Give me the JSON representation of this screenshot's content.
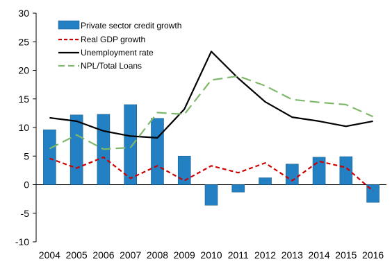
{
  "chart_data": {
    "type": "bar+line",
    "categories": [
      "2004",
      "2005",
      "2006",
      "2007",
      "2008",
      "2009",
      "2010",
      "2011",
      "2012",
      "2013",
      "2014",
      "2015",
      "2016"
    ],
    "ylim": [
      -10,
      30
    ],
    "yticks": [
      30,
      25,
      20,
      15,
      10,
      5,
      0,
      -5,
      -10
    ],
    "ytick_labels": [
      "30",
      "25",
      "20",
      "15",
      "10",
      "5",
      "0",
      "-5",
      "-10"
    ],
    "grid": false,
    "legend_position": "top-left",
    "series": [
      {
        "name": "Private sector credit growth",
        "type": "bar",
        "color": "#2381c3",
        "edge_color": "#1a5f8f",
        "values": [
          9.6,
          12.2,
          12.3,
          14.0,
          11.6,
          5.0,
          -3.6,
          -1.3,
          1.2,
          3.6,
          4.8,
          4.9,
          -3.1
        ]
      },
      {
        "name": "Real GDP growth",
        "type": "line",
        "style": "dashed",
        "color": "#cc0000",
        "values": [
          4.6,
          2.9,
          4.8,
          1.1,
          3.3,
          0.7,
          3.3,
          2.1,
          3.8,
          0.7,
          4.1,
          3.0,
          -1.1
        ]
      },
      {
        "name": "Unemployment rate",
        "type": "line",
        "style": "solid",
        "color": "#000000",
        "values": [
          11.7,
          11.1,
          9.4,
          8.5,
          8.2,
          13.2,
          23.3,
          18.6,
          14.5,
          11.8,
          11.1,
          10.2,
          11.1
        ]
      },
      {
        "name": "NPL/Total Loans",
        "type": "line",
        "style": "long-dashed",
        "color": "#7fb86a",
        "values": [
          6.3,
          8.7,
          6.2,
          6.5,
          12.6,
          12.3,
          18.3,
          19.0,
          17.3,
          14.9,
          14.4,
          14.0,
          11.9
        ]
      }
    ]
  }
}
